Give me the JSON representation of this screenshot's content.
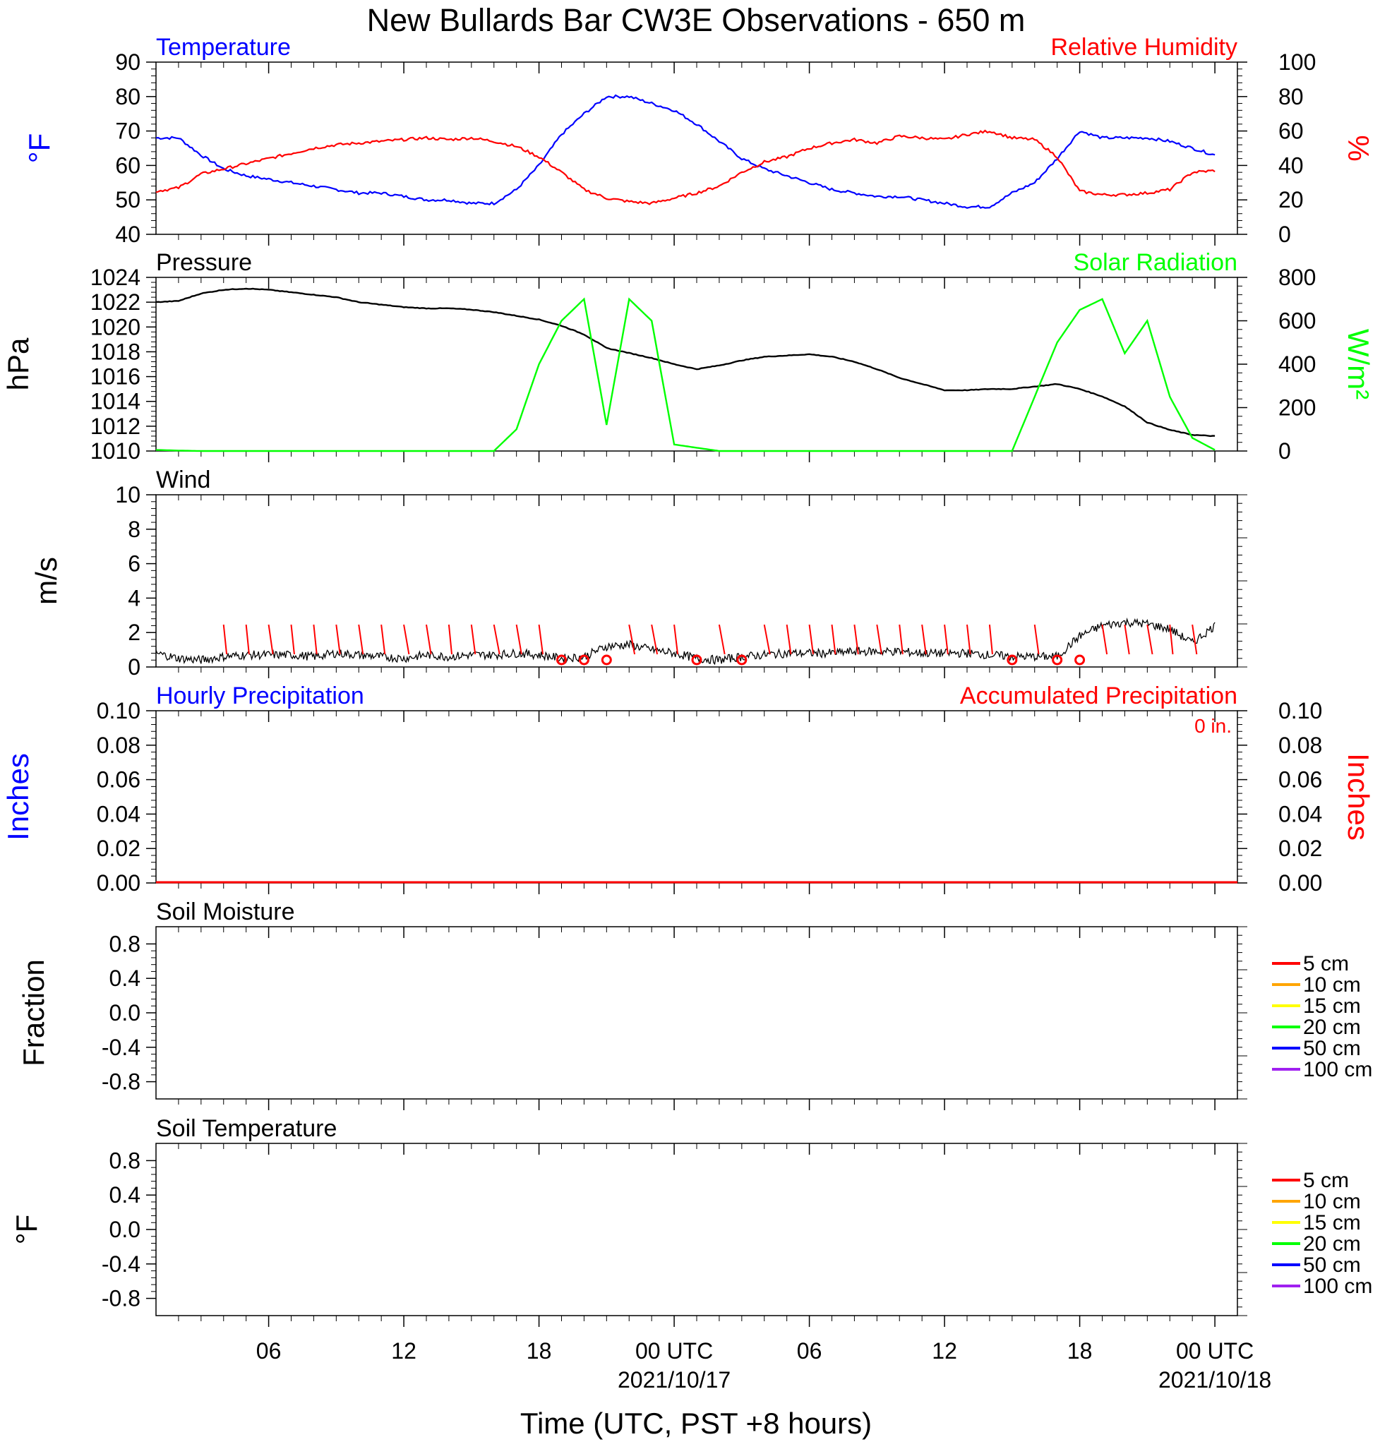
{
  "title": "New Bullards Bar CW3E Observations - 650 m",
  "xaxis": {
    "label": "Time (UTC, PST +8 hours)",
    "range_hours": [
      -23,
      25
    ],
    "ticks": [
      {
        "hour": -18,
        "label": "06"
      },
      {
        "hour": -12,
        "label": "12"
      },
      {
        "hour": -6,
        "label": "18"
      },
      {
        "hour": 0,
        "label": "00 UTC",
        "date": "2021/10/17"
      },
      {
        "hour": 6,
        "label": "06"
      },
      {
        "hour": 12,
        "label": "12"
      },
      {
        "hour": 18,
        "label": "18"
      },
      {
        "hour": 24,
        "label": "00 UTC",
        "date": "2021/10/18"
      }
    ]
  },
  "panels": {
    "temp_rh": {
      "left_title": "Temperature",
      "right_title": "Relative Humidity",
      "left_label": "°F",
      "right_label": "%",
      "left_ticks": [
        "90",
        "80",
        "70",
        "60",
        "50",
        "40"
      ],
      "right_ticks": [
        "100",
        "80",
        "60",
        "40",
        "20",
        "0"
      ]
    },
    "pressure_solar": {
      "left_title": "Pressure",
      "right_title": "Solar Radiation",
      "left_label": "hPa",
      "right_label": "W/m²",
      "left_ticks": [
        "1024",
        "1022",
        "1020",
        "1018",
        "1016",
        "1014",
        "1012",
        "1010"
      ],
      "right_ticks": [
        "800",
        "600",
        "400",
        "200",
        "0"
      ]
    },
    "wind": {
      "left_title": "Wind",
      "left_label": "m/s",
      "left_ticks": [
        "10",
        "8",
        "6",
        "4",
        "2",
        "0"
      ]
    },
    "precip": {
      "left_title": "Hourly Precipitation",
      "right_title": "Accumulated Precipitation",
      "left_label": "Inches",
      "right_label": "Inches",
      "total_label": "0 in.",
      "left_ticks": [
        "0.10",
        "0.08",
        "0.06",
        "0.04",
        "0.02",
        "0.00"
      ],
      "right_ticks": [
        "0.10",
        "0.08",
        "0.06",
        "0.04",
        "0.02",
        "0.00"
      ]
    },
    "soil_moisture": {
      "left_title": "Soil Moisture",
      "left_label": "Fraction",
      "left_ticks": [
        "0.8",
        "0.4",
        "0.0",
        "-0.4",
        "-0.8"
      ]
    },
    "soil_temp": {
      "left_title": "Soil Temperature",
      "left_label": "°F",
      "left_ticks": [
        "0.8",
        "0.4",
        "0.0",
        "-0.4",
        "-0.8"
      ]
    }
  },
  "legend": {
    "entries": [
      {
        "label": "5 cm",
        "color": "#ff0000"
      },
      {
        "label": "10 cm",
        "color": "#ffa500"
      },
      {
        "label": "15 cm",
        "color": "#ffff00"
      },
      {
        "label": "20 cm",
        "color": "#00ff00"
      },
      {
        "label": "50 cm",
        "color": "#0000ff"
      },
      {
        "label": "100 cm",
        "color": "#a020f0"
      }
    ]
  },
  "colors": {
    "temperature": "#0000ff",
    "humidity": "#ff0000",
    "pressure": "#000000",
    "solar": "#00ff00",
    "wind_speed": "#000000",
    "wind_barbs": "#ff0000",
    "precip_hourly": "#0000ff",
    "precip_accum": "#ff0000"
  },
  "chart_data": [
    {
      "type": "line",
      "title": "Temperature",
      "xlabel": "Time (UTC, PST +8 hours)",
      "ylabel": "°F",
      "ylim": [
        40,
        90
      ],
      "x_hours": [
        -23,
        -22,
        -21,
        -20,
        -19,
        -18,
        -17,
        -16,
        -15,
        -14,
        -13,
        -12,
        -11,
        -10,
        -9,
        -8,
        -7,
        -6,
        -5,
        -4,
        -3,
        -2,
        -1,
        0,
        1,
        2,
        3,
        4,
        5,
        6,
        7,
        8,
        9,
        10,
        11,
        12,
        13,
        14,
        15,
        16,
        17,
        18,
        19,
        20,
        21,
        22,
        23,
        24
      ],
      "series": [
        {
          "name": "Temperature",
          "values": [
            68,
            68,
            63,
            59,
            57,
            56,
            55,
            54,
            53,
            52,
            52,
            51,
            50,
            50,
            49,
            49,
            53,
            60,
            69,
            75,
            80,
            80,
            78,
            76,
            72,
            67,
            62,
            59,
            57,
            55,
            53,
            52,
            51,
            51,
            50,
            49,
            48,
            48,
            52,
            55,
            62,
            70,
            68,
            68,
            68,
            67,
            65,
            63
          ]
        }
      ]
    },
    {
      "type": "line",
      "title": "Relative Humidity",
      "ylabel": "%",
      "ylim": [
        0,
        100
      ],
      "x_hours": [
        -23,
        -22,
        -21,
        -20,
        -19,
        -18,
        -17,
        -16,
        -15,
        -14,
        -13,
        -12,
        -11,
        -10,
        -9,
        -8,
        -7,
        -6,
        -5,
        -4,
        -3,
        -2,
        -1,
        0,
        1,
        2,
        3,
        4,
        5,
        6,
        7,
        8,
        9,
        10,
        11,
        12,
        13,
        14,
        15,
        16,
        17,
        18,
        19,
        20,
        21,
        22,
        23,
        24
      ],
      "series": [
        {
          "name": "Relative Humidity",
          "values": [
            25,
            27,
            35,
            38,
            41,
            44,
            47,
            50,
            52,
            53,
            54,
            55,
            56,
            55,
            56,
            54,
            51,
            45,
            36,
            26,
            21,
            19,
            18,
            21,
            24,
            28,
            36,
            42,
            45,
            50,
            53,
            55,
            53,
            57,
            56,
            55,
            58,
            60,
            56,
            55,
            45,
            25,
            23,
            23,
            24,
            26,
            36,
            37
          ]
        }
      ]
    },
    {
      "type": "line",
      "title": "Pressure",
      "ylabel": "hPa",
      "ylim": [
        1010,
        1024
      ],
      "x_hours": [
        -23,
        -22,
        -21,
        -20,
        -19,
        -18,
        -17,
        -16,
        -15,
        -14,
        -13,
        -12,
        -11,
        -10,
        -9,
        -8,
        -7,
        -6,
        -5,
        -4,
        -3,
        -2,
        -1,
        0,
        1,
        2,
        3,
        4,
        5,
        6,
        7,
        8,
        9,
        10,
        11,
        12,
        13,
        14,
        15,
        16,
        17,
        18,
        19,
        20,
        21,
        22,
        23,
        24
      ],
      "series": [
        {
          "name": "Pressure",
          "values": [
            1022.0,
            1022.1,
            1022.7,
            1023.0,
            1023.1,
            1023.0,
            1022.8,
            1022.6,
            1022.4,
            1022.0,
            1021.8,
            1021.6,
            1021.5,
            1021.5,
            1021.4,
            1021.2,
            1020.9,
            1020.6,
            1020.1,
            1019.4,
            1018.3,
            1017.9,
            1017.5,
            1017.0,
            1016.6,
            1016.9,
            1017.3,
            1017.6,
            1017.7,
            1017.8,
            1017.6,
            1017.2,
            1016.6,
            1015.9,
            1015.4,
            1014.9,
            1014.9,
            1015.0,
            1015.0,
            1015.2,
            1015.4,
            1015.0,
            1014.4,
            1013.6,
            1012.3,
            1011.7,
            1011.3,
            1011.2
          ]
        }
      ]
    },
    {
      "type": "line",
      "title": "Solar Radiation",
      "ylabel": "W/m²",
      "ylim": [
        0,
        800
      ],
      "x_hours": [
        -23,
        -22,
        -21,
        -20,
        -19,
        -18,
        -17,
        -16,
        -15,
        -14,
        -13,
        -12,
        -11,
        -10,
        -9,
        -8,
        -7,
        -6,
        -5,
        -4,
        -3,
        -2,
        -1,
        0,
        1,
        2,
        3,
        4,
        5,
        6,
        7,
        8,
        9,
        10,
        11,
        12,
        13,
        14,
        15,
        16,
        17,
        18,
        19,
        20,
        21,
        22,
        23,
        24
      ],
      "series": [
        {
          "name": "Solar Radiation",
          "values": [
            5,
            2,
            0,
            0,
            0,
            0,
            0,
            0,
            0,
            0,
            0,
            0,
            0,
            0,
            0,
            0,
            100,
            400,
            600,
            700,
            120,
            700,
            600,
            30,
            15,
            0,
            0,
            0,
            0,
            0,
            0,
            0,
            0,
            0,
            0,
            0,
            0,
            0,
            0,
            250,
            500,
            650,
            700,
            450,
            600,
            250,
            60,
            5
          ]
        }
      ]
    },
    {
      "type": "line",
      "title": "Wind",
      "ylabel": "m/s",
      "ylim": [
        0,
        10
      ],
      "x_hours": [
        -23,
        -22,
        -21,
        -20,
        -19,
        -18,
        -17,
        -16,
        -15,
        -14,
        -13,
        -12,
        -11,
        -10,
        -9,
        -8,
        -7,
        -6,
        -5,
        -4,
        -3,
        -2,
        -1,
        0,
        1,
        2,
        3,
        4,
        5,
        6,
        7,
        8,
        9,
        10,
        11,
        12,
        13,
        14,
        15,
        16,
        17,
        18,
        19,
        20,
        21,
        22,
        23,
        24
      ],
      "series": [
        {
          "name": "Wind Speed",
          "values": [
            0.8,
            0.5,
            0.4,
            0.6,
            0.7,
            0.7,
            0.7,
            0.6,
            0.8,
            0.7,
            0.6,
            0.5,
            0.7,
            0.6,
            0.7,
            0.7,
            0.8,
            0.7,
            0.5,
            0.6,
            1.2,
            1.3,
            1.0,
            0.8,
            0.5,
            0.4,
            0.6,
            0.7,
            0.8,
            0.8,
            0.8,
            0.9,
            0.9,
            0.9,
            0.8,
            0.8,
            0.8,
            0.7,
            0.6,
            0.6,
            0.6,
            1.8,
            2.4,
            2.6,
            2.5,
            2.2,
            1.4,
            2.4
          ]
        }
      ]
    },
    {
      "type": "line",
      "title": "Hourly Precipitation",
      "ylabel": "Inches",
      "ylim": [
        0,
        0.1
      ],
      "x_hours": [
        -23,
        25
      ],
      "series": [
        {
          "name": "Hourly Precipitation",
          "values": [
            0,
            0
          ]
        },
        {
          "name": "Accumulated Precipitation",
          "values": [
            0,
            0
          ]
        }
      ]
    }
  ]
}
